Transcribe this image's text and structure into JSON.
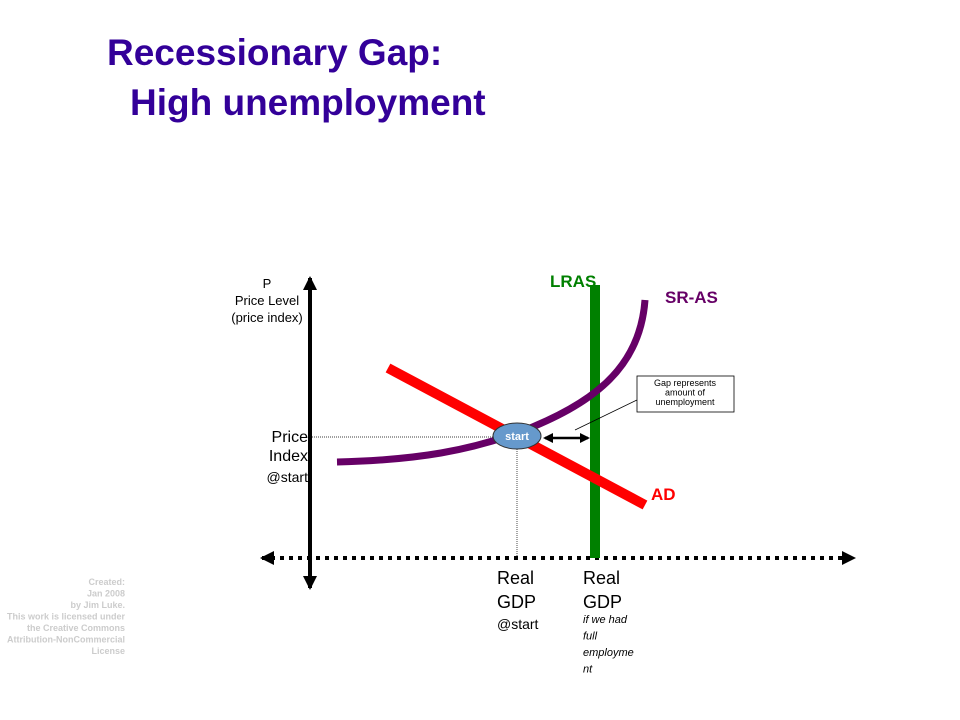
{
  "title": {
    "line1": "Recessionary Gap:",
    "line2": "High unemployment"
  },
  "y_axis": {
    "lines": [
      "P",
      "Price Level",
      "(price index)"
    ]
  },
  "price_start": {
    "lines": [
      "Price",
      "Index",
      "@start"
    ]
  },
  "curves": {
    "lras": "LRAS",
    "sras": "SR-AS",
    "ad": "AD"
  },
  "start_label": "start",
  "callout": {
    "lines": [
      "Gap represents",
      "amount of",
      "unemployment"
    ]
  },
  "real_gdp_start": {
    "lines": [
      "Real",
      "GDP",
      "@start"
    ]
  },
  "real_gdp_full": {
    "lines": [
      "Real",
      "GDP"
    ],
    "note_lines": [
      "if we had",
      "full",
      "employme",
      "nt"
    ]
  },
  "credit": {
    "lines": [
      "Created:",
      "Jan 2008",
      "by Jim Luke.",
      "This work is licensed under",
      "the Creative Commons",
      "Attribution-NonCommercial",
      "License"
    ]
  }
}
